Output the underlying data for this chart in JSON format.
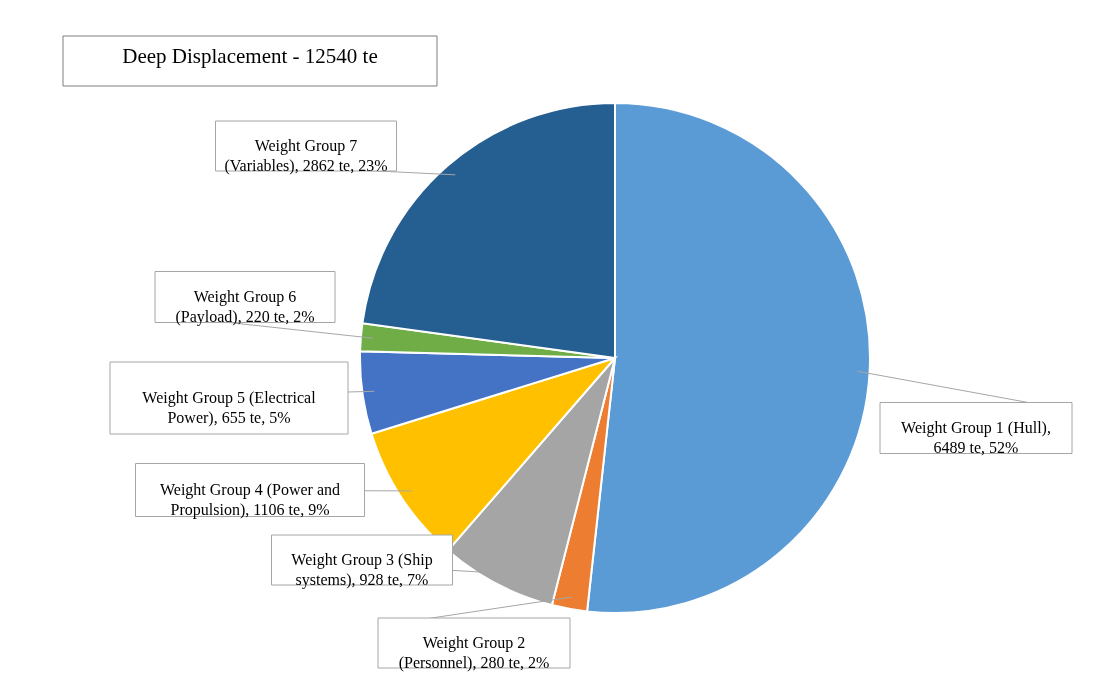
{
  "chart_data": {
    "type": "pie",
    "title": "Deep Displacement - 12540 te",
    "categories": [
      "Weight Group 1 (Hull), 6489 te, 52%",
      "Weight Group 2 (Personnel), 280 te, 2%",
      "Weight Group 3 (Ship systems), 928 te, 7%",
      "Weight Group 4 (Power and Propulsion), 1106 te, 9%",
      "Weight Group 5 (Electrical Power), 655 te, 5%",
      "Weight Group 6 (Payload), 220 te, 2%",
      "Weight Group 7 (Variables), 2862 te, 23%"
    ],
    "values": [
      6489,
      280,
      928,
      1106,
      655,
      220,
      2862
    ],
    "colors": [
      "#5b9bd5",
      "#ed7d31",
      "#a5a5a5",
      "#ffc000",
      "#4472c4",
      "#70ad47",
      "#255e91"
    ]
  }
}
